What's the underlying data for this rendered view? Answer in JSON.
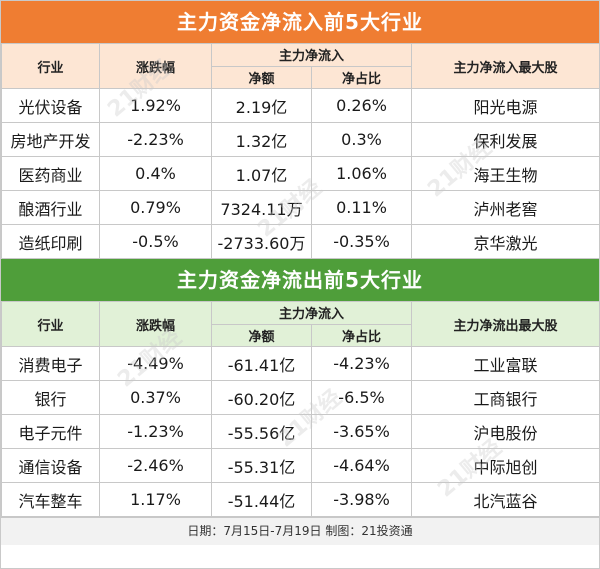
{
  "inflow": {
    "title": "主力资金净流入前5大行业",
    "headers": {
      "industry": "行业",
      "change": "涨跌幅",
      "group": "主力净流入",
      "amount": "净额",
      "ratio": "净占比",
      "top_stock": "主力净流入最大股"
    },
    "rows": [
      {
        "industry": "光伏设备",
        "change": "1.92%",
        "amount": "2.19亿",
        "ratio": "0.26%",
        "stock": "阳光电源"
      },
      {
        "industry": "房地产开发",
        "change": "-2.23%",
        "amount": "1.32亿",
        "ratio": "0.3%",
        "stock": "保利发展"
      },
      {
        "industry": "医药商业",
        "change": "0.4%",
        "amount": "1.07亿",
        "ratio": "1.06%",
        "stock": "海王生物"
      },
      {
        "industry": "酿酒行业",
        "change": "0.79%",
        "amount": "7324.11万",
        "ratio": "0.11%",
        "stock": "泸州老窖"
      },
      {
        "industry": "造纸印刷",
        "change": "-0.5%",
        "amount": "-2733.60万",
        "ratio": "-0.35%",
        "stock": "京华激光"
      }
    ]
  },
  "outflow": {
    "title": "主力资金净流出前5大行业",
    "headers": {
      "industry": "行业",
      "change": "涨跌幅",
      "group": "主力净流入",
      "amount": "净额",
      "ratio": "净占比",
      "top_stock": "主力净流出最大股"
    },
    "rows": [
      {
        "industry": "消费电子",
        "change": "-4.49%",
        "amount": "-61.41亿",
        "ratio": "-4.23%",
        "stock": "工业富联"
      },
      {
        "industry": "银行",
        "change": "0.37%",
        "amount": "-60.20亿",
        "ratio": "-6.5%",
        "stock": "工商银行"
      },
      {
        "industry": "电子元件",
        "change": "-1.23%",
        "amount": "-55.56亿",
        "ratio": "-3.65%",
        "stock": "沪电股份"
      },
      {
        "industry": "通信设备",
        "change": "-2.46%",
        "amount": "-55.31亿",
        "ratio": "-4.64%",
        "stock": "中际旭创"
      },
      {
        "industry": "汽车整车",
        "change": "1.17%",
        "amount": "-51.44亿",
        "ratio": "-3.98%",
        "stock": "北汽蓝谷"
      }
    ]
  },
  "footer": "日期：7月15日-7月19日 制图：21投资通",
  "watermark": "21财经",
  "colors": {
    "inflow_banner": "#ef7d32",
    "outflow_banner": "#4f9e3a",
    "inflow_header": "#fde6d4",
    "outflow_header": "#e1f1d7"
  }
}
